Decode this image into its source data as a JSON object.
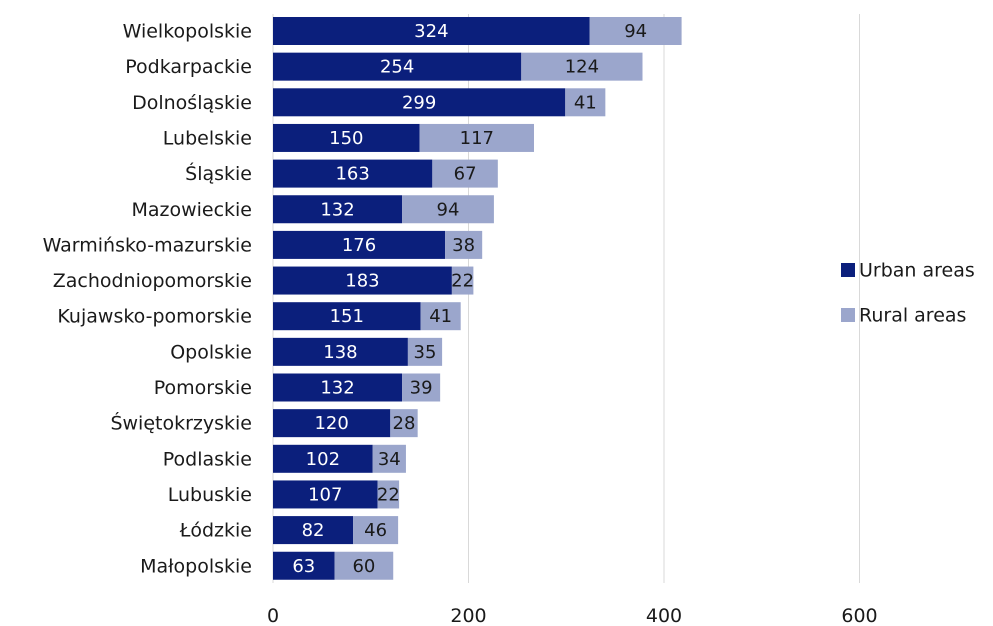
{
  "chart_data": {
    "type": "bar",
    "orientation": "horizontal",
    "stacked": true,
    "title": "",
    "xlabel": "",
    "ylabel": "",
    "xlim": [
      0,
      750
    ],
    "xticks": [
      0,
      200,
      400,
      600
    ],
    "grid": true,
    "legend_position": "right",
    "categories": [
      "Wielkopolskie",
      "Podkarpackie",
      "Dolnośląskie",
      "Lubelskie",
      "Śląskie",
      "Mazowieckie",
      "Warmińsko-mazurskie",
      "Zachodniopomorskie",
      "Kujawsko-pomorskie",
      "Opolskie",
      "Pomorskie",
      "Świętokrzyskie",
      "Podlaskie",
      "Lubuskie",
      "Łódzkie",
      "Małopolskie"
    ],
    "series": [
      {
        "name": "Urban areas",
        "color": "#0b1f7c",
        "label_color": "#ffffff",
        "values": [
          324,
          254,
          299,
          150,
          163,
          132,
          176,
          183,
          151,
          138,
          132,
          120,
          102,
          107,
          82,
          63
        ]
      },
      {
        "name": "Rural areas",
        "color": "#9ba6cc",
        "label_color": "#1a1a1a",
        "values": [
          94,
          124,
          41,
          117,
          67,
          94,
          38,
          22,
          41,
          35,
          39,
          28,
          34,
          22,
          46,
          60
        ]
      }
    ]
  }
}
